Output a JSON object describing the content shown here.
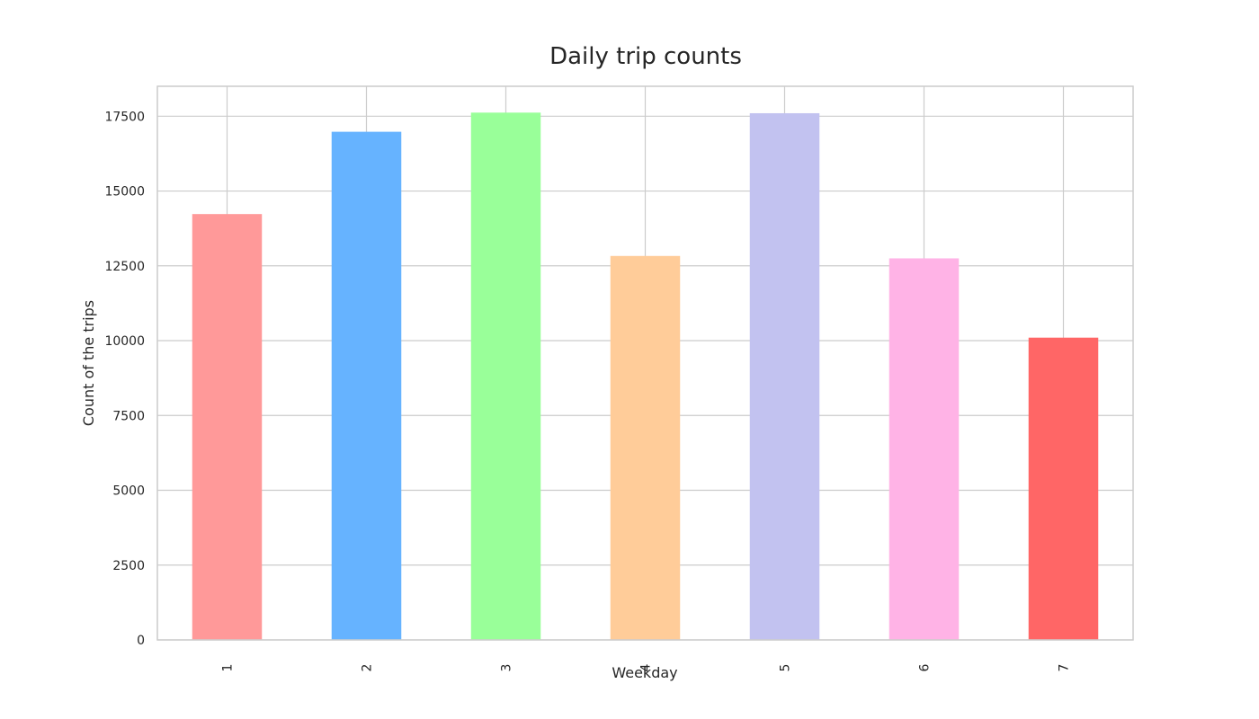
{
  "chart_data": {
    "type": "bar",
    "title": "Daily trip counts",
    "xlabel": "Weekday",
    "ylabel": "Count of the trips",
    "categories": [
      "1",
      "2",
      "3",
      "4",
      "5",
      "6",
      "7"
    ],
    "values": [
      14230,
      16980,
      17620,
      12830,
      17600,
      12750,
      10100
    ],
    "colors": [
      "#ff9999",
      "#66b3ff",
      "#99ff99",
      "#ffcc99",
      "#c2c2f0",
      "#ffb3e6",
      "#ff6666"
    ],
    "yticks": [
      0,
      2500,
      5000,
      7500,
      10000,
      12500,
      15000,
      17500
    ],
    "ylim": [
      0,
      18500
    ],
    "grid": true,
    "xtick_rotation": "vertical"
  }
}
